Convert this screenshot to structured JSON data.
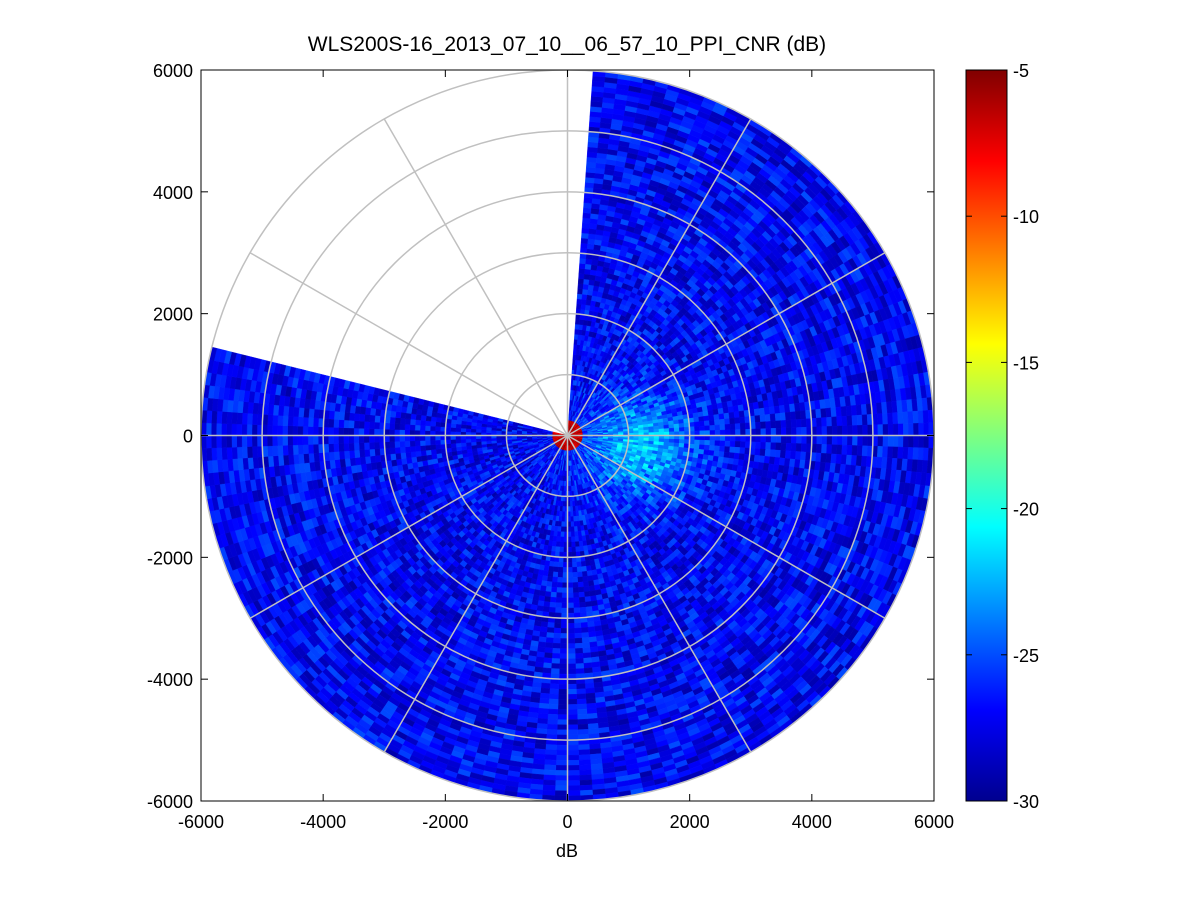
{
  "chart_data": {
    "type": "heatmap",
    "subtype": "polar-ppi",
    "title": "WLS200S-16_2013_07_10__06_57_10_PPI_CNR (dB)",
    "xlabel": "dB",
    "ylabel": "",
    "xlim": [
      -6000,
      6000
    ],
    "ylim": [
      -6000,
      6000
    ],
    "x_ticks": [
      "-6000",
      "-4000",
      "-2000",
      "0",
      "2000",
      "4000",
      "6000"
    ],
    "y_ticks": [
      "6000",
      "4000",
      "2000",
      "0",
      "-2000",
      "-4000",
      "-6000"
    ],
    "x_tick_values": [
      -6000,
      -4000,
      -2000,
      0,
      2000,
      4000,
      6000
    ],
    "y_tick_values": [
      6000,
      4000,
      2000,
      0,
      -2000,
      -4000,
      -6000
    ],
    "range_max": 6000,
    "range_rings": [
      1000,
      2000,
      3000,
      4000,
      5000,
      6000
    ],
    "spoke_angles_deg": [
      0,
      30,
      60,
      90,
      120,
      150,
      180,
      210,
      240,
      270,
      300,
      330
    ],
    "scan_gap_bearing_deg": [
      284,
      364
    ],
    "colorbar": {
      "clim": [
        -30,
        -5
      ],
      "ticks": [
        "-5",
        "-10",
        "-15",
        "-20",
        "-25",
        "-30"
      ],
      "tick_values": [
        -5,
        -10,
        -15,
        -20,
        -25,
        -30
      ],
      "colormap": "jet"
    },
    "typical_cnr_db": {
      "far_field": -27,
      "enhanced_plume_east": -21,
      "near_origin": -5
    },
    "colors": {
      "grid": "#c0c0c0",
      "axes": "#000000",
      "background": "#ffffff"
    }
  }
}
